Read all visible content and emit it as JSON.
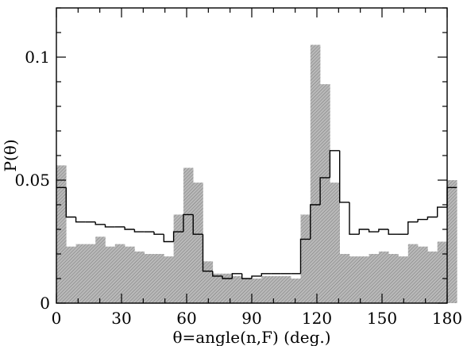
{
  "chart_data": {
    "type": "bar",
    "title": "",
    "xlabel": "θ=angle(n,F) (deg.)",
    "ylabel": "P(θ)",
    "xlim": [
      0,
      180
    ],
    "ylim": [
      0,
      0.12
    ],
    "xticks": [
      0,
      30,
      60,
      90,
      120,
      150,
      180
    ],
    "xtick_labels": [
      "0",
      "30",
      "60",
      "90",
      "120",
      "150",
      "180"
    ],
    "yticks": [
      0,
      0.05,
      0.1
    ],
    "ytick_labels": [
      "0",
      "0.05",
      "0.1"
    ],
    "grid": false,
    "bin_width": 4.5,
    "bin_edges_start": 0,
    "series": [
      {
        "style": "hatched-gray-filled",
        "color": "#a8a8a8",
        "values": [
          0.056,
          0.023,
          0.024,
          0.024,
          0.027,
          0.023,
          0.024,
          0.023,
          0.021,
          0.02,
          0.02,
          0.019,
          0.036,
          0.055,
          0.049,
          0.017,
          0.012,
          0.012,
          0.011,
          0.01,
          0.01,
          0.011,
          0.011,
          0.011,
          0.01,
          0.036,
          0.105,
          0.089,
          0.049,
          0.02,
          0.019,
          0.019,
          0.02,
          0.021,
          0.02,
          0.019,
          0.024,
          0.023,
          0.021,
          0.025,
          0.05
        ]
      },
      {
        "style": "outline-black",
        "color": "#000000",
        "values": [
          0.047,
          0.035,
          0.033,
          0.033,
          0.032,
          0.031,
          0.031,
          0.03,
          0.029,
          0.029,
          0.028,
          0.025,
          0.029,
          0.036,
          0.028,
          0.013,
          0.011,
          0.01,
          0.012,
          0.01,
          0.011,
          0.012,
          0.012,
          0.012,
          0.012,
          0.026,
          0.04,
          0.051,
          0.062,
          0.041,
          0.028,
          0.03,
          0.029,
          0.03,
          0.028,
          0.028,
          0.033,
          0.034,
          0.035,
          0.039,
          0.047
        ]
      }
    ]
  }
}
